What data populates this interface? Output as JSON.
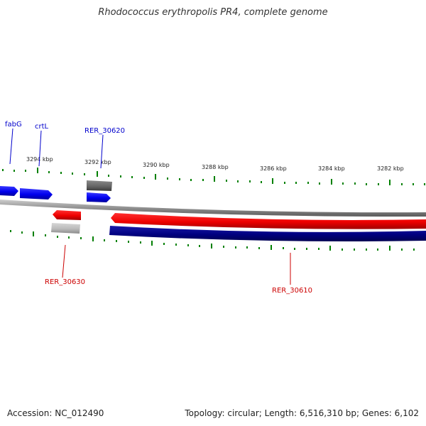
{
  "title": "Rhodococcus erythropolis PR4, complete genome",
  "footer": {
    "accession": "Accession: NC_012490",
    "summary": "Topology: circular; Length: 6,516,310 bp; Genes: 6,102"
  },
  "colors": {
    "forward_gene": "#0000ee",
    "reverse_gene": "#ee0000",
    "forward_rna_or_pseudo": "#666666",
    "reverse_rna_or_pseudo": "#bbbbbb",
    "dark_forward_block": "#000080",
    "tick": "#008000",
    "backbone": "#808080",
    "forward_label": "#0000cc",
    "reverse_label": "#cc0000"
  },
  "scale": {
    "labels": [
      "3294 kbp",
      "3292 kbp",
      "3290 kbp",
      "3288 kbp",
      "3286 kbp",
      "3284 kbp",
      "3282 kbp"
    ]
  },
  "genes": {
    "fabG": "fabG",
    "crtL": "crtL",
    "rer30620": "RER_30620",
    "rer30630": "RER_30630",
    "rer30610": "RER_30610"
  }
}
